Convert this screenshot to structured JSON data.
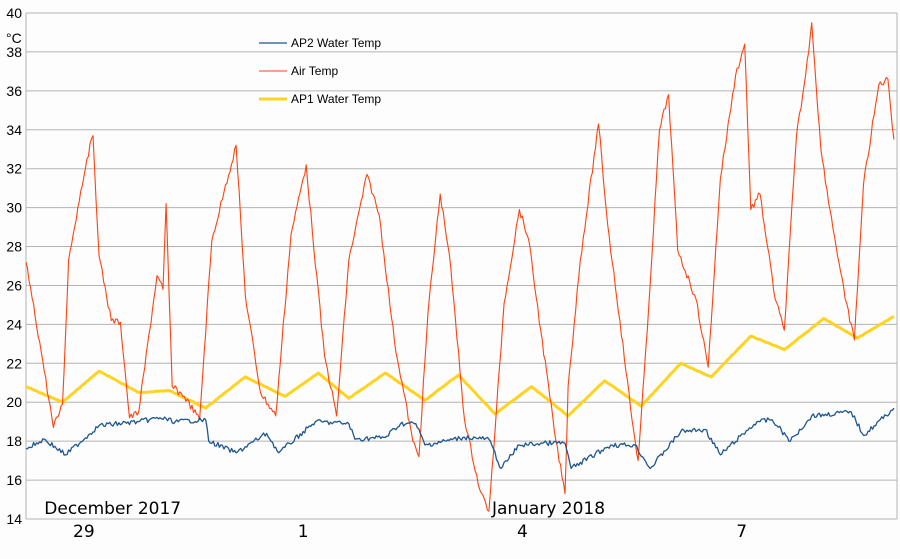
{
  "chart_data": {
    "type": "line",
    "title": "",
    "ylabel": "°C",
    "xlabel": "",
    "ylim": [
      14,
      40
    ],
    "yticks": [
      14,
      16,
      18,
      20,
      22,
      24,
      26,
      28,
      30,
      32,
      34,
      36,
      38,
      40
    ],
    "xlim": [
      "2017-12-28T05:00",
      "2018-01-09T03:00"
    ],
    "grid": "horizontal",
    "legend_position": "top-left",
    "xticks": [
      {
        "date": "2017-12-29T00:00",
        "label": "29"
      },
      {
        "date": "2018-01-01T00:00",
        "label": "1"
      },
      {
        "date": "2018-01-04T00:00",
        "label": "4"
      },
      {
        "date": "2018-01-07T00:00",
        "label": "7"
      }
    ],
    "month_labels": [
      {
        "date": "2017-12-28T11:00",
        "label": "December 2017"
      },
      {
        "date": "2018-01-03T14:00",
        "label": "January 2018"
      }
    ],
    "series": [
      {
        "name": "AP2 Water Temp",
        "color": "#1d5591",
        "points": [
          [
            "2017-12-28T05:00",
            17.6
          ],
          [
            "2017-12-28T11:00",
            18.1
          ],
          [
            "2017-12-28T18:00",
            17.3
          ],
          [
            "2017-12-29T05:00",
            18.8
          ],
          [
            "2017-12-29T18:00",
            19.0
          ],
          [
            "2017-12-30T01:00",
            19.2
          ],
          [
            "2017-12-30T06:00",
            19.0
          ],
          [
            "2017-12-30T16:00",
            19.1
          ],
          [
            "2017-12-30T17:00",
            18.0
          ],
          [
            "2017-12-31T02:00",
            17.4
          ],
          [
            "2017-12-31T12:00",
            18.4
          ],
          [
            "2017-12-31T16:00",
            17.4
          ],
          [
            "2018-01-01T04:00",
            19.0
          ],
          [
            "2018-01-01T15:00",
            18.9
          ],
          [
            "2018-01-01T17:00",
            18.1
          ],
          [
            "2018-01-02T03:00",
            18.2
          ],
          [
            "2018-01-02T08:00",
            18.9
          ],
          [
            "2018-01-02T13:00",
            18.9
          ],
          [
            "2018-01-02T16:00",
            17.8
          ],
          [
            "2018-01-03T05:00",
            18.2
          ],
          [
            "2018-01-03T13:00",
            18.1
          ],
          [
            "2018-01-03T17:00",
            16.6
          ],
          [
            "2018-01-03T23:00",
            17.8
          ],
          [
            "2018-01-04T08:00",
            17.9
          ],
          [
            "2018-01-04T14:00",
            17.9
          ],
          [
            "2018-01-04T16:00",
            16.6
          ],
          [
            "2018-01-05T05:00",
            17.8
          ],
          [
            "2018-01-05T13:00",
            17.8
          ],
          [
            "2018-01-05T18:00",
            16.6
          ],
          [
            "2018-01-06T04:00",
            18.5
          ],
          [
            "2018-01-06T12:00",
            18.6
          ],
          [
            "2018-01-06T17:00",
            17.3
          ],
          [
            "2018-01-07T05:00",
            19.0
          ],
          [
            "2018-01-07T10:00",
            19.1
          ],
          [
            "2018-01-07T16:00",
            18.0
          ],
          [
            "2018-01-07T23:00",
            19.3
          ],
          [
            "2018-01-08T12:00",
            19.5
          ],
          [
            "2018-01-08T16:00",
            18.3
          ],
          [
            "2018-01-09T02:00",
            19.7
          ]
        ]
      },
      {
        "name": "Air Temp",
        "color": "#ff420e",
        "points": [
          [
            "2017-12-28T05:00",
            27.2
          ],
          [
            "2017-12-28T10:00",
            22.6
          ],
          [
            "2017-12-28T14:00",
            18.7
          ],
          [
            "2017-12-28T17:00",
            19.9
          ],
          [
            "2017-12-28T19:00",
            27.3
          ],
          [
            "2017-12-28T22:00",
            30.0
          ],
          [
            "2017-12-29T01:00",
            32.5
          ],
          [
            "2017-12-29T03:00",
            33.7
          ],
          [
            "2017-12-29T05:00",
            27.5
          ],
          [
            "2017-12-29T09:00",
            24.2
          ],
          [
            "2017-12-29T12:00",
            24.1
          ],
          [
            "2017-12-29T15:00",
            19.2
          ],
          [
            "2017-12-29T18:00",
            19.5
          ],
          [
            "2017-12-30T00:00",
            26.5
          ],
          [
            "2017-12-30T02:00",
            25.8
          ],
          [
            "2017-12-30T03:00",
            30.2
          ],
          [
            "2017-12-30T05:00",
            20.8
          ],
          [
            "2017-12-30T09:00",
            20.3
          ],
          [
            "2017-12-30T14:00",
            19.1
          ],
          [
            "2017-12-30T18:00",
            28.3
          ],
          [
            "2017-12-30T22:00",
            30.8
          ],
          [
            "2017-12-31T02:00",
            33.2
          ],
          [
            "2017-12-31T05:00",
            25.5
          ],
          [
            "2017-12-31T10:00",
            20.5
          ],
          [
            "2017-12-31T15:00",
            19.3
          ],
          [
            "2017-12-31T20:00",
            28.6
          ],
          [
            "2018-01-01T01:00",
            32.2
          ],
          [
            "2018-01-01T03:00",
            28.8
          ],
          [
            "2018-01-01T07:00",
            22.4
          ],
          [
            "2018-01-01T11:00",
            19.3
          ],
          [
            "2018-01-01T15:00",
            27.3
          ],
          [
            "2018-01-01T21:00",
            31.7
          ],
          [
            "2018-01-02T01:00",
            29.6
          ],
          [
            "2018-01-02T06:00",
            23.1
          ],
          [
            "2018-01-02T12:00",
            18.0
          ],
          [
            "2018-01-02T14:00",
            17.2
          ],
          [
            "2018-01-02T17:00",
            24.6
          ],
          [
            "2018-01-02T21:00",
            30.7
          ],
          [
            "2018-01-03T00:00",
            27.6
          ],
          [
            "2018-01-03T05:00",
            19.1
          ],
          [
            "2018-01-03T10:00",
            15.5
          ],
          [
            "2018-01-03T13:00",
            14.4
          ],
          [
            "2018-01-03T15:00",
            18.5
          ],
          [
            "2018-01-03T18:00",
            25.1
          ],
          [
            "2018-01-03T23:00",
            29.9
          ],
          [
            "2018-01-04T02:00",
            28.4
          ],
          [
            "2018-01-04T06:00",
            23.7
          ],
          [
            "2018-01-04T11:00",
            18.0
          ],
          [
            "2018-01-04T14:00",
            15.3
          ],
          [
            "2018-01-04T15:00",
            20.8
          ],
          [
            "2018-01-04T19:00",
            27.3
          ],
          [
            "2018-01-05T01:00",
            34.3
          ],
          [
            "2018-01-05T04:00",
            29.1
          ],
          [
            "2018-01-05T08:00",
            24.2
          ],
          [
            "2018-01-05T12:00",
            19.1
          ],
          [
            "2018-01-05T14:00",
            17.0
          ],
          [
            "2018-01-05T17:00",
            23.7
          ],
          [
            "2018-01-05T21:00",
            34.0
          ],
          [
            "2018-01-06T00:00",
            35.8
          ],
          [
            "2018-01-06T03:00",
            27.8
          ],
          [
            "2018-01-06T09:00",
            25.3
          ],
          [
            "2018-01-06T13:00",
            21.8
          ],
          [
            "2018-01-06T17:00",
            31.5
          ],
          [
            "2018-01-06T22:00",
            36.8
          ],
          [
            "2018-01-07T01:00",
            38.4
          ],
          [
            "2018-01-07T03:00",
            29.9
          ],
          [
            "2018-01-07T06:00",
            30.7
          ],
          [
            "2018-01-07T11:00",
            25.3
          ],
          [
            "2018-01-07T14:00",
            23.7
          ],
          [
            "2018-01-07T18:00",
            33.7
          ],
          [
            "2018-01-07T21:00",
            36.8
          ],
          [
            "2018-01-07T23:00",
            39.5
          ],
          [
            "2018-01-08T02:00",
            33.0
          ],
          [
            "2018-01-08T05:00",
            29.9
          ],
          [
            "2018-01-08T10:00",
            25.3
          ],
          [
            "2018-01-08T13:00",
            23.2
          ],
          [
            "2018-01-08T16:00",
            31.2
          ],
          [
            "2018-01-08T21:00",
            36.3
          ],
          [
            "2018-01-09T00:00",
            36.6
          ],
          [
            "2018-01-09T02:00",
            33.5
          ]
        ]
      },
      {
        "name": "AP1 Water Temp",
        "color": "#ffd320",
        "points": [
          [
            "2017-12-28T05:00",
            20.8
          ],
          [
            "2017-12-28T17:00",
            20.0
          ],
          [
            "2017-12-29T05:00",
            21.6
          ],
          [
            "2017-12-29T18:00",
            20.5
          ],
          [
            "2017-12-30T04:00",
            20.6
          ],
          [
            "2017-12-30T16:00",
            19.7
          ],
          [
            "2017-12-31T05:00",
            21.3
          ],
          [
            "2017-12-31T18:00",
            20.3
          ],
          [
            "2018-01-01T05:00",
            21.5
          ],
          [
            "2018-01-01T15:00",
            20.2
          ],
          [
            "2018-01-02T03:00",
            21.5
          ],
          [
            "2018-01-02T16:00",
            20.1
          ],
          [
            "2018-01-03T03:00",
            21.4
          ],
          [
            "2018-01-03T15:00",
            19.4
          ],
          [
            "2018-01-04T03:00",
            20.8
          ],
          [
            "2018-01-04T15:00",
            19.3
          ],
          [
            "2018-01-05T03:00",
            21.1
          ],
          [
            "2018-01-05T15:00",
            19.8
          ],
          [
            "2018-01-06T04:00",
            22.0
          ],
          [
            "2018-01-06T14:00",
            21.3
          ],
          [
            "2018-01-07T03:00",
            23.4
          ],
          [
            "2018-01-07T14:00",
            22.7
          ],
          [
            "2018-01-08T03:00",
            24.3
          ],
          [
            "2018-01-08T14:00",
            23.3
          ],
          [
            "2018-01-09T02:00",
            24.4
          ]
        ]
      }
    ]
  }
}
